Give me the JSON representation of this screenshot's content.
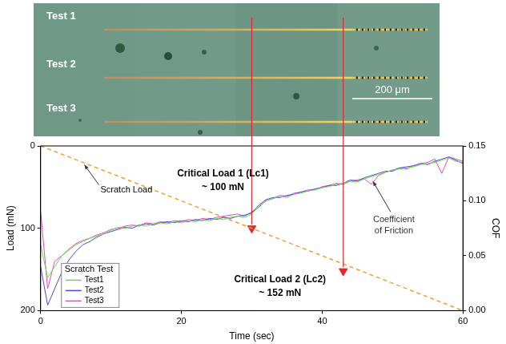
{
  "image": {
    "labels": [
      "Test 1",
      "Test 2",
      "Test 3"
    ],
    "scale_bar": "200 μm"
  },
  "chart_data": {
    "type": "line",
    "x_label": "Time (sec)",
    "y_label": "Load (mN)",
    "y2_label": "COF",
    "xlim": [
      0,
      60
    ],
    "xticks": [
      0,
      20,
      40,
      60
    ],
    "ylim": [
      200,
      0
    ],
    "yticks": [
      0,
      100,
      200
    ],
    "y2lim": [
      0,
      0.15
    ],
    "y2ticks": [
      {
        "value": 0,
        "label": "0.00"
      },
      {
        "value": 0.05,
        "label": "0.05"
      },
      {
        "value": 0.1,
        "label": "0.10"
      },
      {
        "value": 0.15,
        "label": "0.15"
      }
    ],
    "grid": false,
    "legend": "lower left",
    "legend_title": "Scratch Test",
    "x": [
      0,
      1,
      2,
      3,
      4,
      5,
      6,
      7,
      8,
      9,
      10,
      11,
      12,
      13,
      14,
      15,
      16,
      17,
      18,
      19,
      20,
      21,
      22,
      23,
      24,
      25,
      26,
      27,
      28,
      29,
      30,
      31,
      32,
      33,
      34,
      35,
      36,
      37,
      38,
      39,
      40,
      41,
      42,
      43,
      44,
      45,
      46,
      47,
      48,
      49,
      50,
      51,
      52,
      53,
      54,
      55,
      56,
      57,
      58,
      59,
      60
    ],
    "series": [
      {
        "name": "Test1",
        "color": "#66dd44",
        "axis": "y2",
        "values": [
          0.06,
          0.03,
          0.04,
          0.05,
          0.055,
          0.06,
          0.063,
          0.066,
          0.068,
          0.07,
          0.073,
          0.076,
          0.075,
          0.077,
          0.078,
          0.077,
          0.079,
          0.08,
          0.079,
          0.081,
          0.08,
          0.082,
          0.081,
          0.083,
          0.082,
          0.084,
          0.083,
          0.085,
          0.086,
          0.085,
          0.088,
          0.095,
          0.1,
          0.102,
          0.104,
          0.103,
          0.106,
          0.107,
          0.109,
          0.11,
          0.112,
          0.113,
          0.115,
          0.116,
          0.118,
          0.117,
          0.12,
          0.122,
          0.124,
          0.126,
          0.128,
          0.129,
          0.13,
          0.131,
          0.133,
          0.134,
          0.135,
          0.137,
          0.139,
          0.136,
          0.135
        ]
      },
      {
        "name": "Test2",
        "color": "#4a4ae0",
        "axis": "y2",
        "values": [
          0.04,
          0.005,
          0.02,
          0.035,
          0.046,
          0.054,
          0.06,
          0.063,
          0.067,
          0.07,
          0.072,
          0.074,
          0.076,
          0.075,
          0.078,
          0.079,
          0.078,
          0.08,
          0.081,
          0.08,
          0.082,
          0.081,
          0.083,
          0.082,
          0.084,
          0.083,
          0.085,
          0.084,
          0.086,
          0.087,
          0.089,
          0.096,
          0.101,
          0.103,
          0.103,
          0.105,
          0.106,
          0.108,
          0.109,
          0.111,
          0.112,
          0.114,
          0.114,
          0.116,
          0.119,
          0.118,
          0.121,
          0.123,
          0.125,
          0.127,
          0.127,
          0.13,
          0.131,
          0.132,
          0.134,
          0.133,
          0.136,
          0.138,
          0.14,
          0.137,
          0.134
        ]
      },
      {
        "name": "Test3",
        "color": "#ee44cc",
        "axis": "y2",
        "values": [
          0.09,
          0.02,
          0.045,
          0.05,
          0.056,
          0.061,
          0.064,
          0.066,
          0.069,
          0.071,
          0.074,
          0.075,
          0.077,
          0.078,
          0.077,
          0.08,
          0.079,
          0.081,
          0.08,
          0.082,
          0.081,
          0.083,
          0.082,
          0.084,
          0.083,
          0.085,
          0.086,
          0.087,
          0.088,
          0.086,
          0.09,
          0.094,
          0.1,
          0.102,
          0.105,
          0.104,
          0.107,
          0.108,
          0.11,
          0.11,
          0.113,
          0.114,
          0.116,
          0.115,
          0.118,
          0.119,
          0.12,
          0.115,
          0.123,
          0.126,
          0.128,
          0.13,
          0.129,
          0.132,
          0.134,
          0.135,
          0.138,
          0.125,
          0.14,
          0.138,
          0.136
        ]
      }
    ],
    "scratch_load": {
      "name": "Scratch Load",
      "color": "#f0a030",
      "line_style": "dashed",
      "x": [
        0,
        60
      ],
      "values": [
        0,
        200
      ]
    },
    "critical_loads": [
      {
        "label": "Critical Load 1 (Lc1)",
        "value_label": "~ 100 mN",
        "time": 30,
        "load": 100,
        "color": "#e8242c",
        "marker": "triangle"
      },
      {
        "label": "Critical Load 2 (Lc2)",
        "value_label": "~ 152 mN",
        "time": 43,
        "load": 152,
        "color": "#e8242c",
        "marker": "triangle"
      }
    ],
    "annotations": [
      "Coefficient of Friction"
    ]
  }
}
